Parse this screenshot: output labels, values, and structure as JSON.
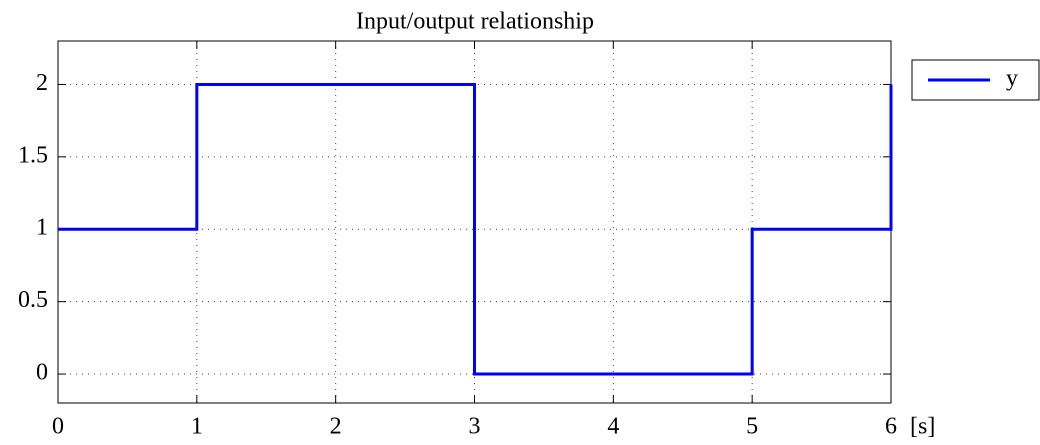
{
  "chart_data": {
    "type": "line",
    "title": "Input/output relationship",
    "xlabel": "[s]",
    "x": [
      0,
      1,
      1,
      3,
      3,
      5,
      5,
      6,
      6
    ],
    "series": [
      {
        "name": "y",
        "color": "#0000ff",
        "values": [
          1,
          1,
          2,
          2,
          0,
          0,
          1,
          1,
          2
        ]
      }
    ],
    "xlim": [
      0,
      6
    ],
    "xticks": [
      0,
      1,
      2,
      3,
      4,
      5,
      6
    ],
    "ylim": [
      -0.2,
      2.3
    ],
    "yticks": [
      0,
      0.5,
      1,
      1.5,
      2
    ],
    "grid": true,
    "legend": "outside-right"
  }
}
